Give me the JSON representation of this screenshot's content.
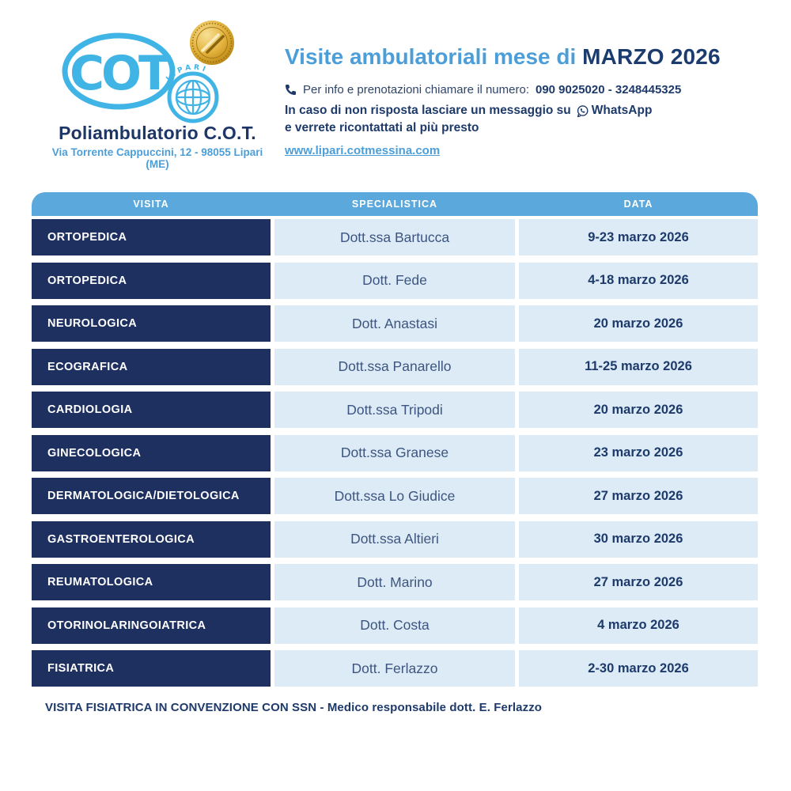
{
  "brand": {
    "logo_text": "COT",
    "logo_subtext": "LIPARI",
    "name": "Poliambulatorio C.O.T.",
    "address": "Via Torrente Cappuccini, 12 - 98055 Lipari (ME)"
  },
  "header": {
    "title_regular": "Visite ambulatoriali mese di ",
    "title_bold": "MARZO 2026",
    "phone_label": "Per info e prenotazioni chiamare il numero:",
    "phone_numbers": "090 9025020 - 3248445325",
    "note_before_icon": "In caso di non risposta lasciare un messaggio su",
    "whatsapp_label": "WhatsApp",
    "note_line2": "e verrete ricontattati al più presto",
    "website": "www.lipari.cotmessina.com"
  },
  "table": {
    "columns": [
      "VISITA",
      "SPECIALISTICA",
      "DATA"
    ],
    "rows": [
      {
        "visita": "ORTOPEDICA",
        "specialista": "Dott.ssa Bartucca",
        "data": "9-23 marzo 2026"
      },
      {
        "visita": "ORTOPEDICA",
        "specialista": "Dott. Fede",
        "data": "4-18 marzo 2026"
      },
      {
        "visita": "NEUROLOGICA",
        "specialista": "Dott. Anastasi",
        "data": "20 marzo 2026"
      },
      {
        "visita": "ECOGRAFICA",
        "specialista": "Dott.ssa Panarello",
        "data": "11-25 marzo 2026"
      },
      {
        "visita": "CARDIOLOGIA",
        "specialista": "Dott.ssa Tripodi",
        "data": "20 marzo 2026"
      },
      {
        "visita": "GINECOLOGICA",
        "specialista": "Dott.ssa Granese",
        "data": "23 marzo 2026"
      },
      {
        "visita": "DERMATOLOGICA/DIETOLOGICA",
        "specialista": "Dott.ssa Lo Giudice",
        "data": "27 marzo 2026"
      },
      {
        "visita": "GASTROENTEROLOGICA",
        "specialista": "Dott.ssa Altieri",
        "data": "30 marzo 2026"
      },
      {
        "visita": "REUMATOLOGICA",
        "specialista": "Dott. Marino",
        "data": "27 marzo 2026"
      },
      {
        "visita": "OTORINOLARINGOIATRICA",
        "specialista": "Dott. Costa",
        "data": "4 marzo 2026"
      },
      {
        "visita": "FISIATRICA",
        "specialista": "Dott. Ferlazzo",
        "data": "2-30 marzo 2026"
      }
    ]
  },
  "footer": {
    "note": "VISITA FISIATRICA IN CONVENZIONE CON SSN - Medico responsabile dott. E. Ferlazzo"
  },
  "icons": {
    "phone": "phone-icon",
    "whatsapp": "whatsapp-icon",
    "seal": "quality-seal-icon"
  },
  "colors": {
    "accent_blue": "#4c9ed9",
    "navy": "#1d3a6b",
    "logo_blue": "#41b4e6",
    "table_header_blue": "#5ba9dc",
    "row_navy": "#1e3060",
    "row_light": "#dcebf6",
    "gold": "#dfae35"
  }
}
